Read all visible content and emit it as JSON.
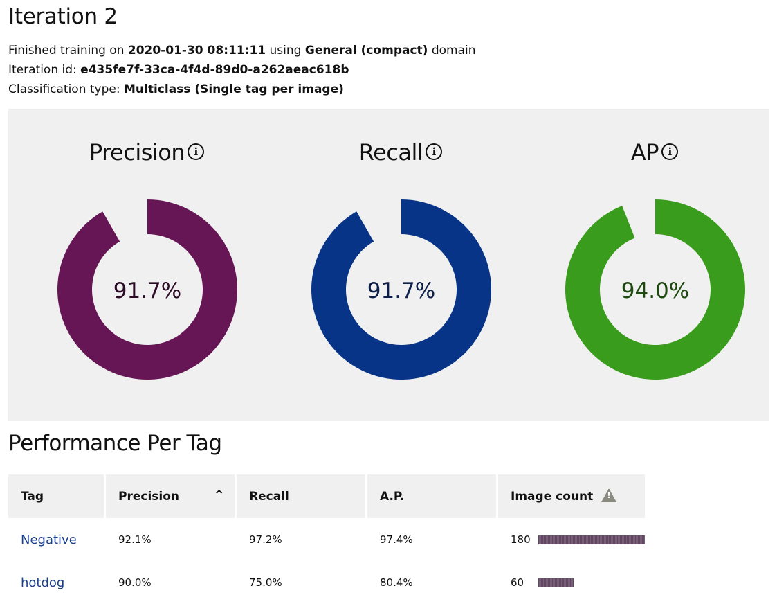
{
  "header": {
    "title": "Iteration 2",
    "finished_prefix": "Finished training on ",
    "finished_date": "2020-01-30 08:11:11",
    "finished_mid": " using ",
    "domain": "General (compact)",
    "finished_suffix": " domain",
    "iteration_label": "Iteration id: ",
    "iteration_id": "e435fe7f-33ca-4f4d-89d0-a262aeac618b",
    "classification_label": "Classification type: ",
    "classification_type": "Multiclass (Single tag per image)"
  },
  "metrics": [
    {
      "title": "Precision",
      "value_label": "91.7%",
      "value": 0.917,
      "color": "#661654",
      "text_color": "#2a0a24",
      "icon": "info-icon"
    },
    {
      "title": "Recall",
      "value_label": "91.7%",
      "value": 0.917,
      "color": "#073487",
      "text_color": "#0b1f4a",
      "icon": "info-icon"
    },
    {
      "title": "AP",
      "value_label": "94.0%",
      "value": 0.94,
      "color": "#3a9c1c",
      "text_color": "#1d4a0f",
      "icon": "info-icon"
    }
  ],
  "per_tag": {
    "title": "Performance Per Tag",
    "columns": {
      "tag": "Tag",
      "precision": "Precision",
      "recall": "Recall",
      "ap": "A.P.",
      "image_count": "Image count"
    },
    "sort_icon": "chevron-up-icon",
    "warning_icon": "warning-icon",
    "rows": [
      {
        "tag": "Negative",
        "precision": "92.1%",
        "recall": "97.2%",
        "ap": "97.4%",
        "image_count": "180",
        "count_value": 180
      },
      {
        "tag": "hotdog",
        "precision": "90.0%",
        "recall": "75.0%",
        "ap": "80.4%",
        "image_count": "60",
        "count_value": 60
      }
    ],
    "bar_color": "#6d4f6d"
  }
}
